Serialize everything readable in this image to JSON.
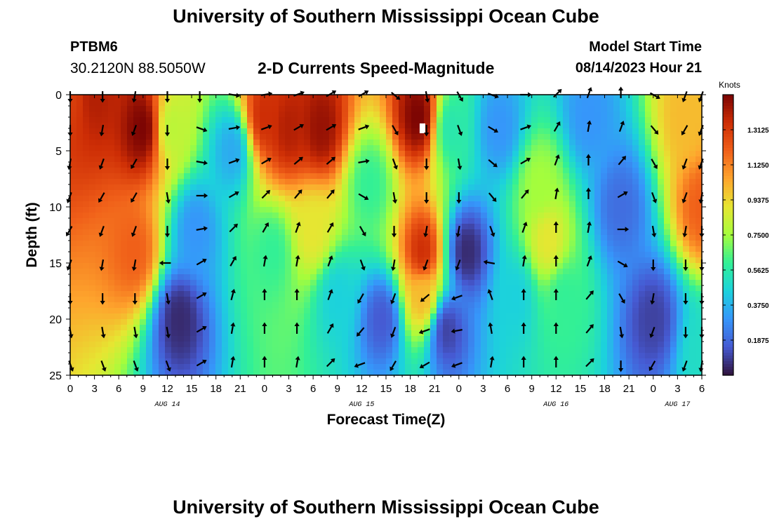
{
  "header": {
    "title": "University of Southern Mississippi Ocean Cube",
    "station": "PTBM6",
    "coords": "30.2120N  88.5050W",
    "subtitle": "2-D Currents Speed-Magnitude",
    "model_start_label": "Model Start Time",
    "model_start_value": "08/14/2023 Hour 21"
  },
  "footer": {
    "title": "University of Southern Mississippi Ocean Cube"
  },
  "chart_data": {
    "type": "heatmap",
    "title": "2-D Currents Speed-Magnitude",
    "xlabel": "Forecast Time(Z)",
    "ylabel": "Depth (ft)",
    "xlim": [
      0,
      78
    ],
    "ylim": [
      0,
      25
    ],
    "x_tick_values": [
      0,
      3,
      6,
      9,
      12,
      15,
      18,
      21,
      24,
      27,
      30,
      33,
      36,
      39,
      42,
      45,
      48,
      51,
      54,
      57,
      60,
      63,
      66,
      69,
      72,
      75,
      78
    ],
    "x_tick_labels": [
      "0",
      "3",
      "6",
      "9",
      "12",
      "15",
      "18",
      "21",
      "0",
      "3",
      "6",
      "9",
      "12",
      "15",
      "18",
      "21",
      "0",
      "3",
      "6",
      "9",
      "12",
      "15",
      "18",
      "21",
      "0",
      "3",
      "6"
    ],
    "date_labels": [
      {
        "x": 12,
        "label": "AUG 14"
      },
      {
        "x": 36,
        "label": "AUG 15"
      },
      {
        "x": 60,
        "label": "AUG 16"
      },
      {
        "x": 75,
        "label": "AUG 17"
      }
    ],
    "y_ticks": [
      0,
      5,
      10,
      15,
      20,
      25
    ],
    "colorbar": {
      "label": "Knots",
      "min": 0,
      "max": 1.5,
      "tick_values": [
        0.1875,
        0.375,
        0.5625,
        0.75,
        0.9375,
        1.125,
        1.3125
      ],
      "tick_labels": [
        "0.1875",
        "0.3750",
        "0.5625",
        "0.7500",
        "0.9375",
        "1.1250",
        "1.3125"
      ]
    },
    "speed_features": [
      {
        "t": 0,
        "depth": 0,
        "speed": 1.3
      },
      {
        "t": 3,
        "depth": 0,
        "speed": 1.4
      },
      {
        "t": 9,
        "depth": 3,
        "speed": 1.5
      },
      {
        "t": 8,
        "depth": 14,
        "speed": 1.2
      },
      {
        "t": 12.5,
        "depth": 3,
        "speed": 0.8
      },
      {
        "t": 13.5,
        "depth": 20,
        "speed": 0.05
      },
      {
        "t": 15.5,
        "depth": 12,
        "speed": 0.3
      },
      {
        "t": 20,
        "depth": 5,
        "speed": 0.35
      },
      {
        "t": 24,
        "depth": 2,
        "speed": 1.35
      },
      {
        "t": 27,
        "depth": 3,
        "speed": 1.4
      },
      {
        "t": 31,
        "depth": 3,
        "speed": 1.45
      },
      {
        "t": 25,
        "depth": 14,
        "speed": 0.6
      },
      {
        "t": 30,
        "depth": 12,
        "speed": 0.9
      },
      {
        "t": 33,
        "depth": 18,
        "speed": 0.45
      },
      {
        "t": 37,
        "depth": 8,
        "speed": 0.6
      },
      {
        "t": 38.5,
        "depth": 20,
        "speed": 0.15
      },
      {
        "t": 43,
        "depth": 2,
        "speed": 1.5
      },
      {
        "t": 43.5,
        "depth": 14,
        "speed": 1.35
      },
      {
        "t": 43.5,
        "depth": 18,
        "speed": 1.0
      },
      {
        "t": 46.5,
        "depth": 21,
        "speed": 0.1
      },
      {
        "t": 49,
        "depth": 14,
        "speed": 0.05
      },
      {
        "t": 47,
        "depth": 3,
        "speed": 0.55
      },
      {
        "t": 53,
        "depth": 3,
        "speed": 0.3
      },
      {
        "t": 55,
        "depth": 18,
        "speed": 0.45
      },
      {
        "t": 58,
        "depth": 8,
        "speed": 0.75
      },
      {
        "t": 59,
        "depth": 13,
        "speed": 0.9
      },
      {
        "t": 61,
        "depth": 18,
        "speed": 0.6
      },
      {
        "t": 64,
        "depth": 2,
        "speed": 0.3
      },
      {
        "t": 68,
        "depth": 10,
        "speed": 0.2
      },
      {
        "t": 72,
        "depth": 20,
        "speed": 0.1
      },
      {
        "t": 76,
        "depth": 2,
        "speed": 1.0
      },
      {
        "t": 78,
        "depth": 10,
        "speed": 1.2
      },
      {
        "t": 78,
        "depth": 23,
        "speed": 0.5
      }
    ],
    "vector_times": [
      0,
      4,
      8,
      12,
      16,
      20,
      24,
      28,
      32,
      36,
      40,
      44,
      48,
      52,
      56,
      60,
      64,
      68,
      72,
      76,
      78
    ],
    "vector_depths": [
      0,
      3,
      6,
      9,
      12,
      15,
      18,
      21,
      24
    ],
    "vector_directions_deg": [
      [
        180,
        180,
        190,
        200,
        210,
        200,
        180,
        170,
        160
      ],
      [
        180,
        190,
        200,
        210,
        200,
        190,
        180,
        170,
        160
      ],
      [
        190,
        200,
        210,
        210,
        200,
        190,
        180,
        170,
        160
      ],
      [
        180,
        180,
        180,
        170,
        180,
        270,
        170,
        170,
        160
      ],
      [
        180,
        110,
        100,
        90,
        80,
        60,
        60,
        60,
        60
      ],
      [
        100,
        80,
        70,
        60,
        45,
        30,
        15,
        10,
        10
      ],
      [
        80,
        70,
        60,
        45,
        30,
        10,
        0,
        0,
        0
      ],
      [
        70,
        60,
        50,
        40,
        20,
        10,
        0,
        0,
        10
      ],
      [
        60,
        60,
        50,
        40,
        30,
        20,
        20,
        30,
        45
      ],
      [
        60,
        70,
        80,
        120,
        150,
        160,
        210,
        220,
        250
      ],
      [
        130,
        150,
        160,
        170,
        180,
        190,
        200,
        200,
        210
      ],
      [
        170,
        180,
        180,
        180,
        190,
        200,
        230,
        250,
        240
      ],
      [
        150,
        160,
        170,
        180,
        190,
        200,
        250,
        260,
        250
      ],
      [
        110,
        120,
        130,
        140,
        160,
        280,
        340,
        350,
        10
      ],
      [
        90,
        70,
        60,
        40,
        20,
        10,
        0,
        0,
        0
      ],
      [
        45,
        30,
        20,
        10,
        0,
        0,
        0,
        0,
        0
      ],
      [
        20,
        10,
        0,
        0,
        10,
        20,
        40,
        40,
        45
      ],
      [
        0,
        20,
        40,
        60,
        90,
        120,
        150,
        170,
        180
      ],
      [
        120,
        140,
        150,
        160,
        170,
        180,
        190,
        200,
        210
      ],
      [
        200,
        210,
        200,
        200,
        190,
        180,
        180,
        180,
        200
      ],
      [
        200,
        200,
        200,
        190,
        180,
        180,
        180,
        180,
        190
      ]
    ],
    "missing_cells": [
      {
        "t": 43.5,
        "depth": 3
      }
    ]
  }
}
